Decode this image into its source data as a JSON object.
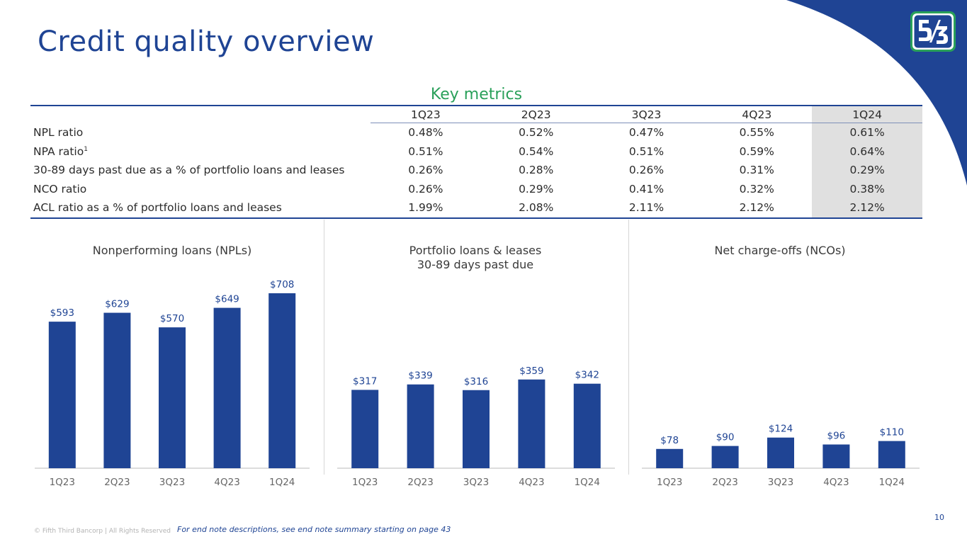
{
  "page": {
    "title": "Credit quality overview",
    "page_number": "10",
    "copyright": "© Fifth Third Bancorp | All Rights Reserved",
    "endnote": "For end note descriptions, see end note summary starting on page 43",
    "colors": {
      "brand_blue": "#1f4494",
      "accent_green": "#2aa05a",
      "highlight_gray": "#e0e0e0"
    },
    "logo_icon": "fifth-third-logo-icon"
  },
  "key_metrics": {
    "label": "Key metrics",
    "columns": [
      "1Q23",
      "2Q23",
      "3Q23",
      "4Q23",
      "1Q24"
    ],
    "rows": [
      {
        "label": "NPL ratio",
        "sup": "",
        "values": [
          "0.48%",
          "0.52%",
          "0.47%",
          "0.55%",
          "0.61%"
        ]
      },
      {
        "label": "NPA ratio",
        "sup": "1",
        "values": [
          "0.51%",
          "0.54%",
          "0.51%",
          "0.59%",
          "0.64%"
        ]
      },
      {
        "label": "30-89 days past due as a % of portfolio loans and leases",
        "sup": "",
        "values": [
          "0.26%",
          "0.28%",
          "0.26%",
          "0.31%",
          "0.29%"
        ]
      },
      {
        "label": "NCO ratio",
        "sup": "",
        "values": [
          "0.26%",
          "0.29%",
          "0.41%",
          "0.32%",
          "0.38%"
        ]
      },
      {
        "label": "ACL ratio as a % of portfolio loans and leases",
        "sup": "",
        "values": [
          "1.99%",
          "2.08%",
          "2.11%",
          "2.12%",
          "2.12%"
        ]
      }
    ]
  },
  "chart_data": [
    {
      "type": "bar",
      "title": "Nonperforming loans (NPLs)",
      "categories": [
        "1Q23",
        "2Q23",
        "3Q23",
        "4Q23",
        "1Q24"
      ],
      "values": [
        593,
        629,
        570,
        649,
        708
      ],
      "labels": [
        "$593",
        "$629",
        "$570",
        "$649",
        "$708"
      ],
      "ylim": [
        0,
        708
      ],
      "color": "#1f4494"
    },
    {
      "type": "bar",
      "title": "Portfolio loans & leases\n30-89 days past due",
      "title_lines": [
        "Portfolio loans & leases",
        "30-89 days past due"
      ],
      "categories": [
        "1Q23",
        "2Q23",
        "3Q23",
        "4Q23",
        "1Q24"
      ],
      "values": [
        317,
        339,
        316,
        359,
        342
      ],
      "labels": [
        "$317",
        "$339",
        "$316",
        "$359",
        "$342"
      ],
      "ylim": [
        0,
        708
      ],
      "color": "#1f4494"
    },
    {
      "type": "bar",
      "title": "Net charge-offs (NCOs)",
      "categories": [
        "1Q23",
        "2Q23",
        "3Q23",
        "4Q23",
        "1Q24"
      ],
      "values": [
        78,
        90,
        124,
        96,
        110
      ],
      "labels": [
        "$78",
        "$90",
        "$124",
        "$96",
        "$110"
      ],
      "ylim": [
        0,
        708
      ],
      "color": "#1f4494"
    }
  ]
}
